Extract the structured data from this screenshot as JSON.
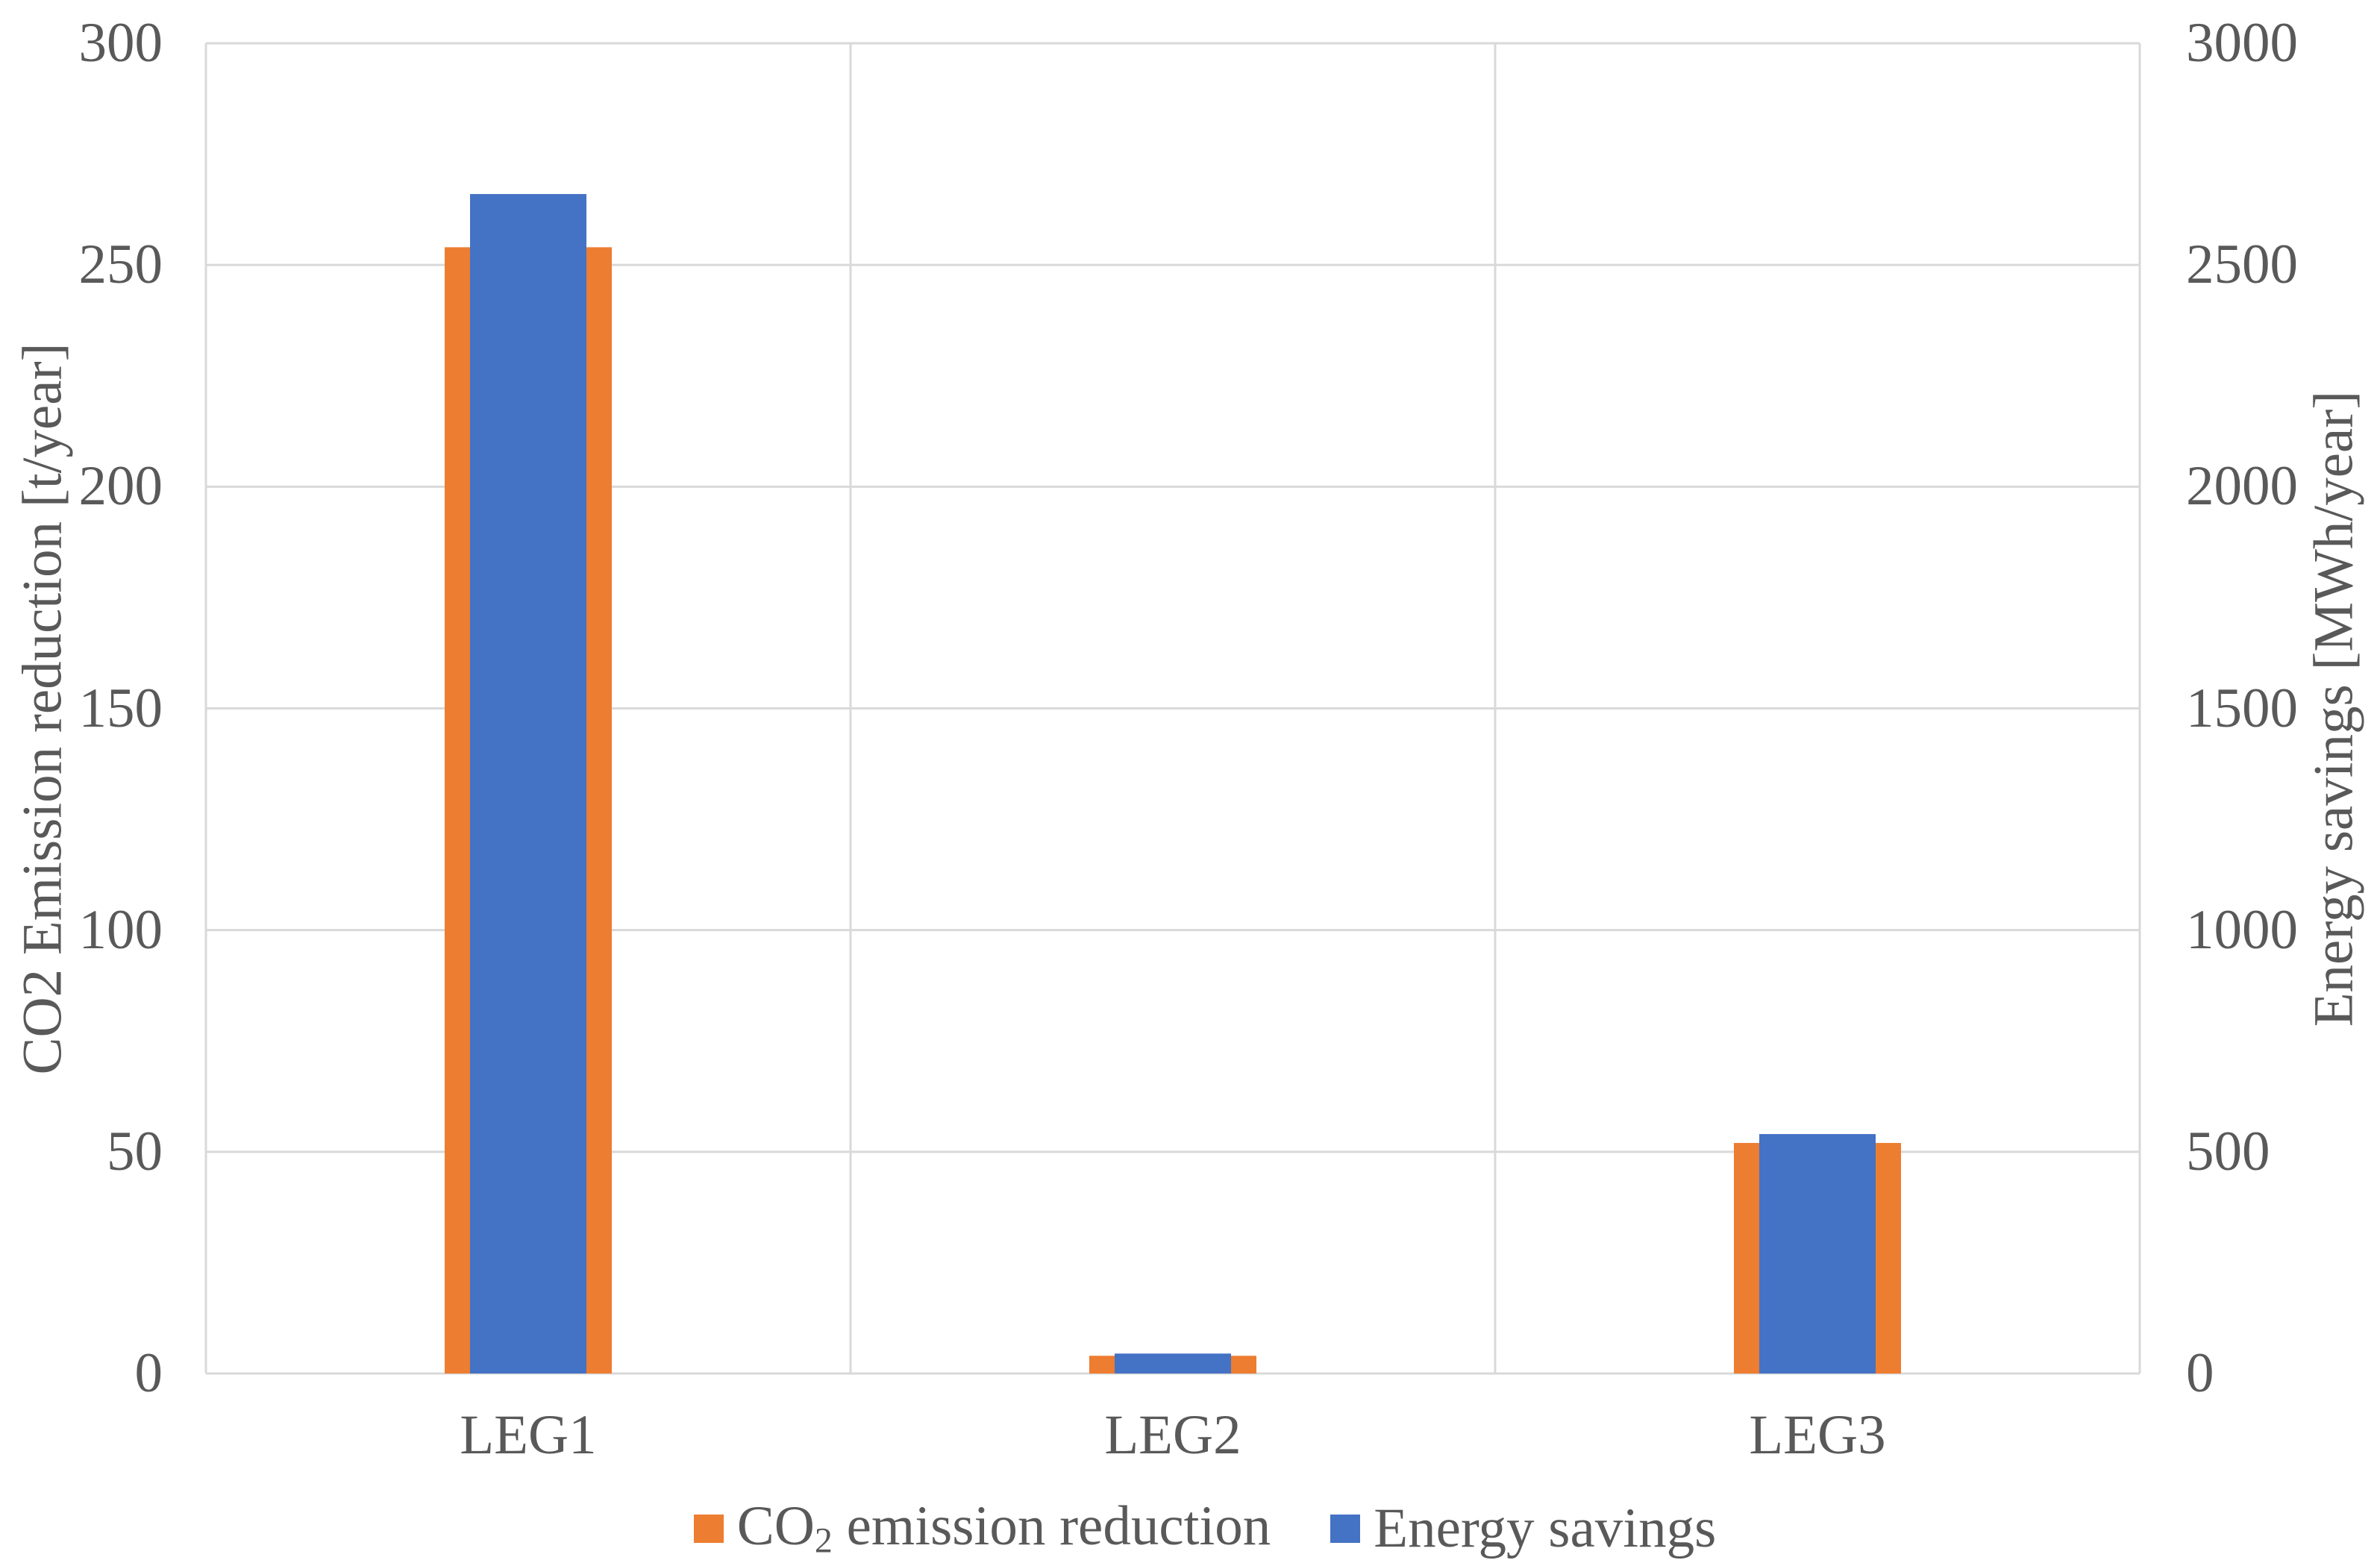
{
  "chart_data": {
    "type": "bar",
    "categories": [
      "LEG1",
      "LEG2",
      "LEG3"
    ],
    "series": [
      {
        "name": "CO2 emission reduction",
        "axis": "left",
        "color": "#ED7D31",
        "values": [
          254,
          4,
          52
        ]
      },
      {
        "name": "Energy savings",
        "axis": "right",
        "color": "#4472C4",
        "values": [
          2660,
          45,
          540
        ]
      }
    ],
    "left_axis": {
      "label": "CO2 Emission reduction [t/year]",
      "min": 0,
      "max": 300,
      "ticks": [
        300,
        250,
        200,
        150,
        100,
        50,
        0
      ]
    },
    "right_axis": {
      "label": "Energy savings [MWh/year]",
      "min": 0,
      "max": 3000,
      "ticks": [
        3000,
        2500,
        2000,
        1500,
        1000,
        500,
        0
      ]
    },
    "grid": true,
    "legend_position": "bottom",
    "bar_style": "overlapped-centered"
  },
  "axes": {
    "left_title": "CO2 Emission reduction [t/year]",
    "right_title": "Energy savings [MWh/year]"
  },
  "legend": {
    "co2": {
      "prefix": "CO",
      "sub": "2",
      "rest": " emission reduction"
    },
    "energy": "Energy savings"
  },
  "colors": {
    "co2": "#ED7D31",
    "energy": "#4472C4",
    "grid": "#D9D9D9",
    "text": "#595959",
    "background": "#FFFFFF"
  }
}
